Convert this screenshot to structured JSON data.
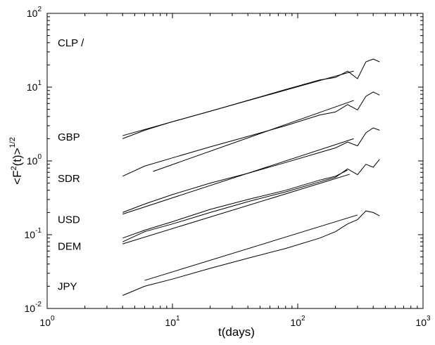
{
  "chart_data": {
    "type": "line",
    "title": "",
    "xlabel": "t(days)",
    "ylabel_base": "<F",
    "ylabel_sup": "2",
    "ylabel_mid": "(t)>",
    "ylabel_exp": "1/2",
    "xscale": "log",
    "yscale": "log",
    "xlim": [
      1,
      1000
    ],
    "ylim": [
      0.01,
      100
    ],
    "x_ticks": [
      {
        "value": 1,
        "base": "10",
        "exp": "0"
      },
      {
        "value": 10,
        "base": "10",
        "exp": "1"
      },
      {
        "value": 100,
        "base": "10",
        "exp": "2"
      },
      {
        "value": 1000,
        "base": "10",
        "exp": "3"
      }
    ],
    "y_ticks": [
      {
        "value": 0.01,
        "base": "10",
        "exp": "-2"
      },
      {
        "value": 0.1,
        "base": "10",
        "exp": "-1"
      },
      {
        "value": 1,
        "base": "10",
        "exp": "0"
      },
      {
        "value": 10,
        "base": "10",
        "exp": "1"
      },
      {
        "value": 100,
        "base": "10",
        "exp": "2"
      }
    ],
    "grid": false,
    "series": [
      {
        "label": "CLP /",
        "label_y": 40,
        "x": [
          4,
          6,
          10,
          20,
          40,
          80,
          150,
          200,
          250,
          300,
          350,
          400,
          450
        ],
        "y": [
          2.0,
          2.6,
          3.4,
          4.7,
          6.6,
          9.3,
          12.5,
          13.5,
          16.5,
          13.0,
          22.0,
          24.0,
          22.0
        ]
      },
      {
        "label": "GBP",
        "label_y": 2.1,
        "x": [
          4,
          6,
          10,
          20,
          40,
          80,
          150,
          200,
          250,
          300,
          350,
          400,
          450
        ],
        "y": [
          0.62,
          0.85,
          1.1,
          1.55,
          2.15,
          3.0,
          4.2,
          4.6,
          5.8,
          4.9,
          7.5,
          8.6,
          7.8
        ]
      },
      {
        "label": "SDR",
        "label_y": 0.58,
        "x": [
          4,
          6,
          10,
          20,
          40,
          80,
          150,
          200,
          250,
          300,
          350,
          400,
          450
        ],
        "y": [
          0.2,
          0.26,
          0.35,
          0.5,
          0.68,
          0.95,
          1.3,
          1.5,
          1.8,
          1.6,
          2.4,
          2.8,
          2.6
        ]
      },
      {
        "label": "USD",
        "label_y": 0.16,
        "x": [
          4,
          6,
          10,
          20,
          40,
          80,
          150,
          200,
          250,
          300,
          350,
          400,
          450
        ],
        "y": [
          0.08,
          0.11,
          0.14,
          0.2,
          0.28,
          0.38,
          0.52,
          0.6,
          0.78,
          0.65,
          0.9,
          0.82,
          1.05
        ]
      },
      {
        "label": "DEM",
        "label_y": 0.07,
        "x": [
          4,
          6,
          10,
          20,
          40,
          80,
          150,
          200,
          250
        ],
        "y": [
          0.09,
          0.115,
          0.15,
          0.22,
          0.3,
          0.4,
          0.55,
          0.62,
          0.75
        ]
      },
      {
        "label": "JPY",
        "label_y": 0.02,
        "x": [
          4,
          6,
          10,
          20,
          40,
          80,
          150,
          200,
          250,
          300,
          350,
          400,
          450
        ],
        "y": [
          0.015,
          0.02,
          0.025,
          0.035,
          0.048,
          0.065,
          0.09,
          0.11,
          0.14,
          0.16,
          0.21,
          0.2,
          0.18
        ]
      }
    ],
    "fit_lines": [
      {
        "x": [
          4,
          280
        ],
        "y": [
          2.2,
          16.5
        ]
      },
      {
        "x": [
          7,
          280
        ],
        "y": [
          0.72,
          6.6
        ]
      },
      {
        "x": [
          4,
          280
        ],
        "y": [
          0.19,
          2.0
        ]
      },
      {
        "x": [
          4,
          260
        ],
        "y": [
          0.075,
          0.66
        ]
      },
      {
        "x": [
          6,
          300
        ],
        "y": [
          0.024,
          0.185
        ]
      }
    ]
  }
}
